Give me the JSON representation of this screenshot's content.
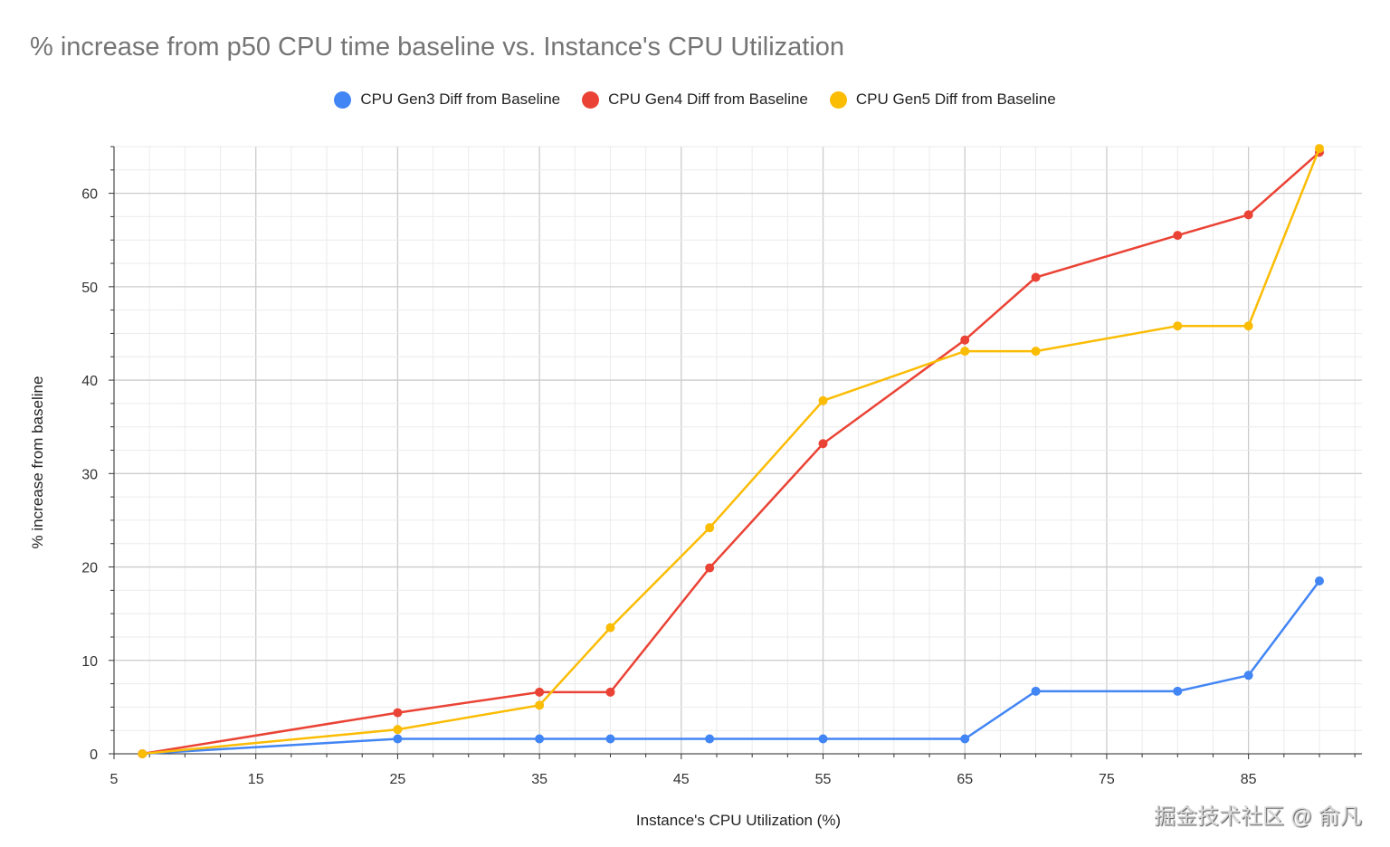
{
  "chart_data": {
    "type": "line",
    "title": "%  increase from p50 CPU time baseline vs. Instance's CPU Utilization",
    "xlabel": "Instance's CPU Utilization (%)",
    "ylabel": "% increase from baseline",
    "xlim": [
      5,
      93
    ],
    "ylim": [
      0,
      65
    ],
    "xticks": [
      5,
      15,
      25,
      35,
      45,
      55,
      65,
      75,
      85
    ],
    "yticks": [
      0,
      10,
      20,
      30,
      40,
      50,
      60
    ],
    "grid": true,
    "legend_position": "top",
    "x": [
      7,
      25,
      35,
      40,
      47,
      55,
      65,
      70,
      80,
      85,
      90
    ],
    "series": [
      {
        "name": "CPU Gen3 Diff from Baseline",
        "color": "#4285f4",
        "values": [
          0,
          1.6,
          1.6,
          1.6,
          1.6,
          1.6,
          1.6,
          6.7,
          6.7,
          8.4,
          18.5
        ]
      },
      {
        "name": "CPU Gen4 Diff from Baseline",
        "color": "#ea4335",
        "values": [
          0,
          4.4,
          6.6,
          6.6,
          19.9,
          33.2,
          44.3,
          51.0,
          55.5,
          57.7,
          64.4
        ]
      },
      {
        "name": "CPU Gen5 Diff from Baseline",
        "color": "#fbbc04",
        "values": [
          0,
          2.6,
          5.2,
          13.5,
          24.2,
          37.8,
          43.1,
          43.1,
          45.8,
          45.8,
          64.8
        ]
      }
    ]
  },
  "watermark": "掘金技术社区 @ 俞凡"
}
